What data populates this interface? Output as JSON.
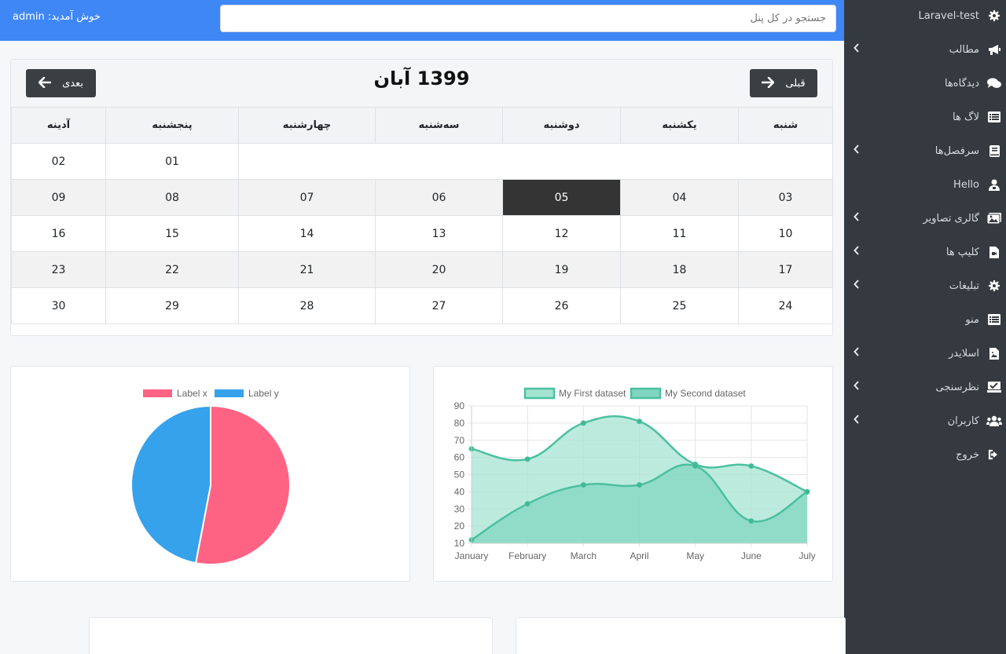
{
  "topbar": {
    "welcome": "خوش آمدید: admin",
    "search_placeholder": "جستجو در کل پنل"
  },
  "sidebar": {
    "items": [
      {
        "label": "Laravel-test",
        "icon": "gear-icon",
        "chevron": false
      },
      {
        "label": "مطالب",
        "icon": "megaphone-icon",
        "chevron": true
      },
      {
        "label": "دیدگاه‌ها",
        "icon": "comments-icon",
        "chevron": false
      },
      {
        "label": "لاگ ها",
        "icon": "list-icon",
        "chevron": false
      },
      {
        "label": "سرفصل‌ها",
        "icon": "book-icon",
        "chevron": true
      },
      {
        "label": "Hello",
        "icon": "user-icon",
        "chevron": false
      },
      {
        "label": "گالری تصاویر",
        "icon": "images-icon",
        "chevron": true
      },
      {
        "label": "کلیپ ها",
        "icon": "video-file-icon",
        "chevron": true
      },
      {
        "label": "تبلیغات",
        "icon": "gear-icon",
        "chevron": true
      },
      {
        "label": "منو",
        "icon": "list-icon",
        "chevron": false
      },
      {
        "label": "اسلایدر",
        "icon": "image-file-icon",
        "chevron": true
      },
      {
        "label": "نظرسنجی",
        "icon": "poll-icon",
        "chevron": true
      },
      {
        "label": "کاربران",
        "icon": "users-icon",
        "chevron": true
      },
      {
        "label": "خروج",
        "icon": "sign-out-icon",
        "chevron": false
      }
    ]
  },
  "calendar": {
    "title": "1399 آبان",
    "prev_label": "قبلی",
    "next_label": "بعدی",
    "weekdays": [
      "شنبه",
      "یکشنبه",
      "دوشنبه",
      "سه‌شنبه",
      "چهارشنبه",
      "پنجشنبه",
      "آدینه"
    ],
    "weeks": [
      [
        "",
        "",
        "",
        "",
        "",
        "01",
        "02"
      ],
      [
        "03",
        "04",
        "05",
        "06",
        "07",
        "08",
        "09"
      ],
      [
        "10",
        "11",
        "12",
        "13",
        "14",
        "15",
        "16"
      ],
      [
        "17",
        "18",
        "19",
        "20",
        "21",
        "22",
        "23"
      ],
      [
        "24",
        "25",
        "26",
        "27",
        "28",
        "29",
        "30"
      ]
    ],
    "today": "05"
  },
  "chart_data": [
    {
      "type": "pie",
      "labels": [
        "Label x",
        "Label y"
      ],
      "values": [
        53,
        47
      ],
      "colors": [
        "#ff6384",
        "#36a2eb"
      ]
    },
    {
      "type": "area",
      "categories": [
        "January",
        "February",
        "March",
        "April",
        "May",
        "June",
        "July"
      ],
      "series": [
        {
          "name": "My First dataset",
          "values": [
            65,
            59,
            80,
            81,
            56,
            55,
            40
          ]
        },
        {
          "name": "My Second dataset",
          "values": [
            12,
            33,
            44,
            44,
            55,
            23,
            40
          ]
        }
      ],
      "ylim": [
        10,
        90
      ],
      "yticks": [
        10,
        20,
        30,
        40,
        50,
        60,
        70,
        80,
        90
      ],
      "colors": {
        "line": "#4bc0a0",
        "fill_first": "#a6e4d2",
        "fill_second": "#7fd5bf"
      },
      "grid": true,
      "legend": "top"
    }
  ]
}
